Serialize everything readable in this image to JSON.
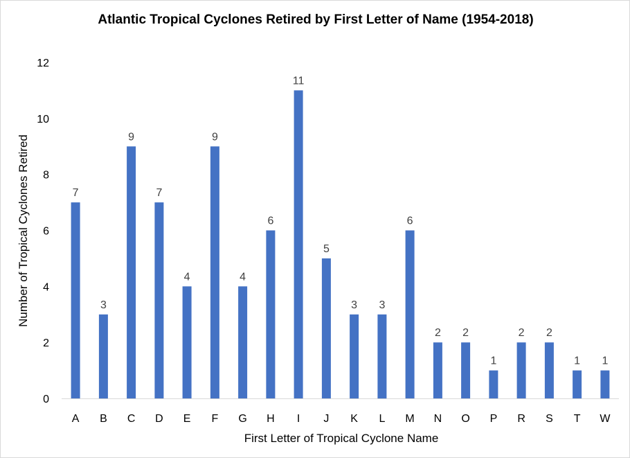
{
  "chart_data": {
    "type": "bar",
    "title": "Atlantic Tropical Cyclones Retired by First Letter of Name (1954-2018)",
    "xlabel": "First Letter of Tropical Cyclone Name",
    "ylabel": "Number of Tropical Cyclones Retired",
    "categories": [
      "A",
      "B",
      "C",
      "D",
      "E",
      "F",
      "G",
      "H",
      "I",
      "J",
      "K",
      "L",
      "M",
      "N",
      "O",
      "P",
      "R",
      "S",
      "T",
      "W"
    ],
    "values": [
      7,
      3,
      9,
      7,
      4,
      9,
      4,
      6,
      11,
      5,
      3,
      3,
      6,
      2,
      2,
      1,
      2,
      2,
      1,
      1
    ],
    "ylim": [
      0,
      12
    ],
    "yticks": [
      0,
      2,
      4,
      6,
      8,
      10,
      12
    ],
    "grid": false,
    "data_labels": true,
    "bar_color": "#4472C4"
  }
}
